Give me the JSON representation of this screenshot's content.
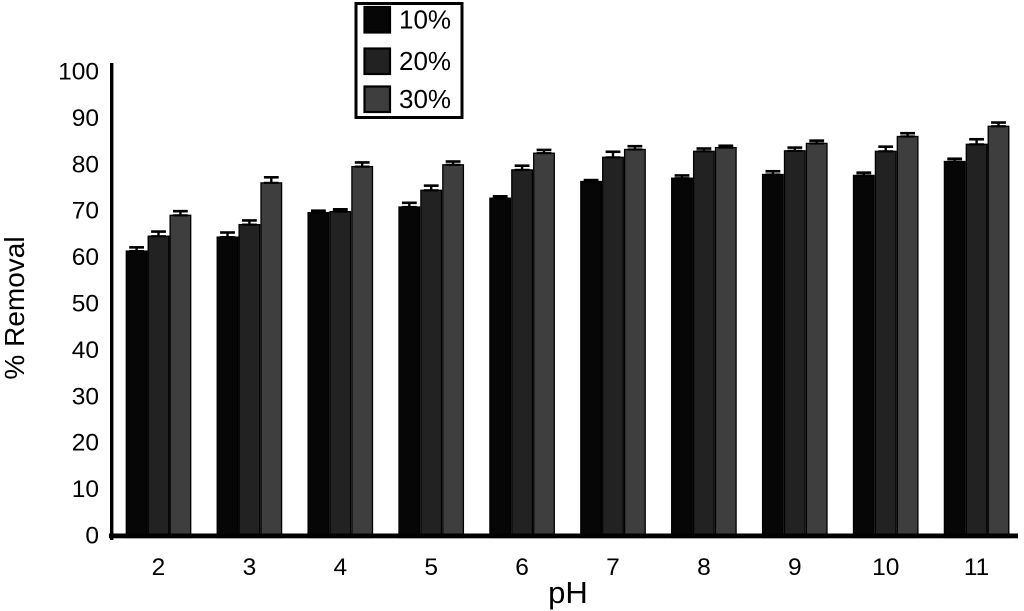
{
  "chart_data": {
    "type": "bar",
    "title": "",
    "xlabel": "pH",
    "ylabel": "% Removal",
    "ylim": [
      0,
      100
    ],
    "yticks": [
      0,
      10,
      20,
      30,
      40,
      50,
      60,
      70,
      80,
      90,
      100
    ],
    "categories": [
      "2",
      "3",
      "4",
      "5",
      "6",
      "7",
      "8",
      "9",
      "10",
      "11"
    ],
    "grid": false,
    "legend_position": "top-center",
    "error_bars": true,
    "series": [
      {
        "name": "10%",
        "color": "#060606",
        "values": [
          61.3,
          64.3,
          69.6,
          70.8,
          72.7,
          76.3,
          77.0,
          77.8,
          77.6,
          80.6
        ],
        "errors": [
          0.8,
          1.0,
          0.4,
          0.9,
          0.4,
          0.3,
          0.6,
          0.7,
          0.6,
          0.6
        ]
      },
      {
        "name": "20%",
        "color": "#222222",
        "values": [
          64.5,
          67.0,
          69.8,
          74.4,
          78.8,
          81.5,
          82.8,
          82.9,
          82.8,
          84.3
        ],
        "errors": [
          1.0,
          0.9,
          0.5,
          1.0,
          0.9,
          1.2,
          0.6,
          0.7,
          1.0,
          1.1
        ]
      },
      {
        "name": "30%",
        "color": "#3e3e3e",
        "values": [
          69.0,
          76.0,
          79.5,
          79.9,
          82.4,
          83.2,
          83.6,
          84.5,
          86.0,
          88.2
        ],
        "errors": [
          0.9,
          1.2,
          0.9,
          0.7,
          0.7,
          0.7,
          0.4,
          0.6,
          0.7,
          0.8
        ]
      }
    ],
    "axis_color": "#000000",
    "background_color": "#ffffff"
  }
}
